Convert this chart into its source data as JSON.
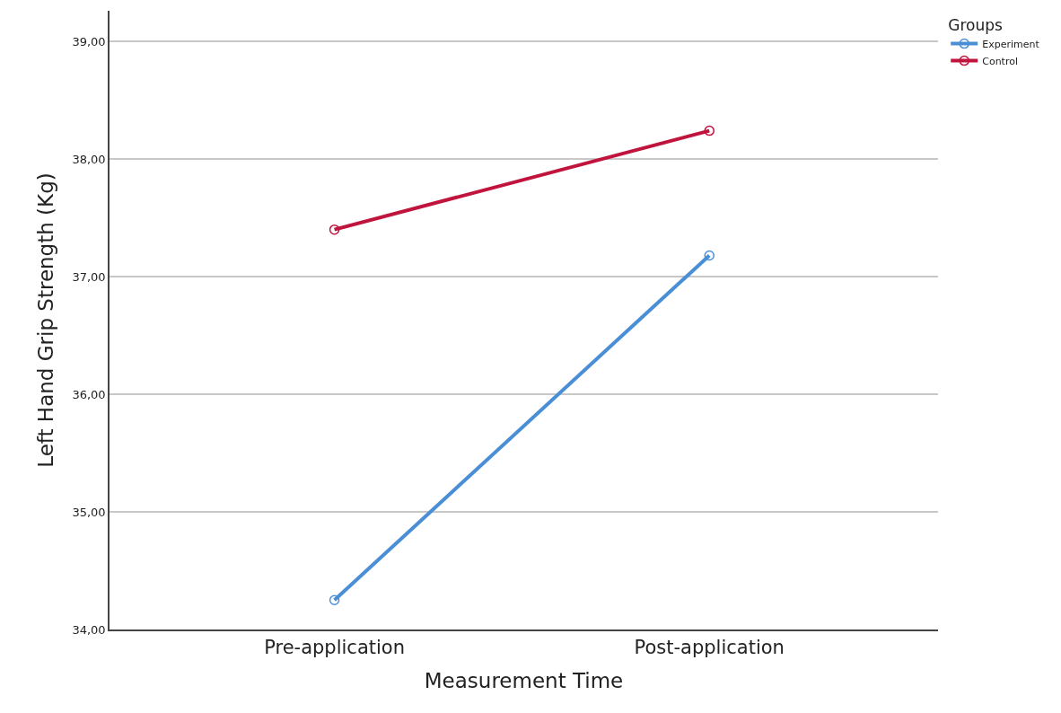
{
  "chart_data": {
    "type": "line",
    "xlabel": "Measurement Time",
    "ylabel": "Left Hand Grip Strength (Kg)",
    "legend_title": "Groups",
    "categories": [
      "Pre-application",
      "Post-application"
    ],
    "series": [
      {
        "name": "Experiment",
        "color": "#4a8fd6",
        "values": [
          34.25,
          37.18
        ]
      },
      {
        "name": "Control",
        "color": "#c0143c",
        "values": [
          37.4,
          38.24
        ]
      }
    ],
    "ylim": [
      34,
      39.26
    ],
    "yticks": [
      {
        "value": 34,
        "label": "34,00"
      },
      {
        "value": 35,
        "label": "35,00"
      },
      {
        "value": 36,
        "label": "36,00"
      },
      {
        "value": 37,
        "label": "37,00"
      },
      {
        "value": 38,
        "label": "38,00"
      },
      {
        "value": 39,
        "label": "39,00"
      }
    ],
    "grid": "y",
    "legend": "top right",
    "marker": "circle",
    "line_style": "solid"
  }
}
